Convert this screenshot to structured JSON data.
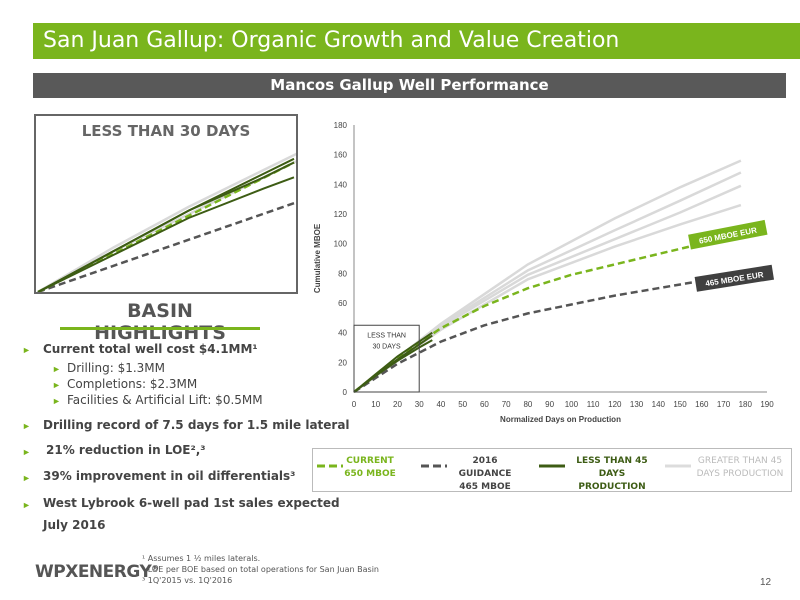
{
  "header": {
    "title": "San Juan Gallup: Organic Growth and Value Creation",
    "subtitle": "Mancos Gallup Well Performance"
  },
  "inset": {
    "title": "LESS THAN 30 DAYS"
  },
  "highlights": {
    "title": "BASIN HIGHLIGHTS",
    "items": [
      "Current total well cost $4.1MM¹",
      "Drilling: $1.3MM",
      "Completions: $2.3MM",
      "Facilities & Artificial Lift: $0.5MM",
      "Drilling record of 7.5 days for 1.5 mile lateral",
      "21% reduction in LOE²,³",
      "39% improvement in oil differentials³",
      "West Lybrook 6-well pad 1st sales expected",
      "July 2016"
    ]
  },
  "chart_data": {
    "type": "line",
    "xlabel": "Normalized Days on Production",
    "ylabel": "Cumulative MBOE",
    "xlim": [
      0,
      190
    ],
    "ylim": [
      0,
      180
    ],
    "xticks": [
      "0",
      "10",
      "20",
      "30",
      "40",
      "50",
      "60",
      "70",
      "80",
      "90",
      "100",
      "110",
      "120",
      "130",
      "140",
      "150",
      "160",
      "170",
      "180",
      "190"
    ],
    "yticks": [
      "0",
      "20",
      "40",
      "60",
      "80",
      "100",
      "120",
      "140",
      "160",
      "180"
    ],
    "grid": false,
    "annotation_box_label": [
      "LESS THAN",
      "30 DAYS"
    ],
    "eur_labels": [
      "650 MBOE EUR",
      "465 MBOE EUR"
    ],
    "colors": {
      "current": "#7ab51d",
      "guidance": "#555555",
      "short": "#3d5c14",
      "long": "#d9d9d9",
      "eur650_bg": "#7ab51d",
      "eur465_bg": "#404040"
    },
    "series": [
      {
        "name": "CURRENT 650 MBOE",
        "style": "dashed",
        "x": [
          0,
          20,
          40,
          60,
          80,
          100,
          120,
          140,
          160,
          175
        ],
        "y": [
          0,
          23,
          43,
          58,
          70,
          79,
          86,
          93,
          100,
          104
        ]
      },
      {
        "name": "2016 GUIDANCE 465 MBOE",
        "style": "dashed",
        "x": [
          0,
          20,
          40,
          60,
          80,
          100,
          120,
          140,
          160,
          175
        ],
        "y": [
          0,
          19,
          34,
          45,
          53,
          59,
          65,
          70,
          75,
          78
        ]
      },
      {
        "name": "LESS THAN 45 DAYS PRODUCTION",
        "style": "solid",
        "x": [
          [
            0,
            10,
            20,
            30,
            36
          ],
          [
            0,
            10,
            20,
            30,
            36
          ],
          [
            0,
            10,
            20,
            30,
            36
          ]
        ],
        "y": [
          [
            0,
            12,
            24,
            34,
            40
          ],
          [
            0,
            11,
            21,
            30,
            35
          ],
          [
            0,
            11,
            22,
            32,
            38
          ]
        ]
      },
      {
        "name": "GREATER THAN 45 DAYS PRODUCTION",
        "style": "solid",
        "x": [
          [
            0,
            40,
            80,
            120,
            150,
            178
          ],
          [
            0,
            40,
            80,
            120,
            150,
            178
          ],
          [
            0,
            40,
            80,
            120,
            150,
            178
          ],
          [
            0,
            40,
            80,
            120,
            150,
            178
          ]
        ],
        "y": [
          [
            0,
            46,
            86,
            117,
            138,
            156
          ],
          [
            0,
            44,
            79,
            103,
            121,
            139
          ],
          [
            0,
            42,
            76,
            98,
            113,
            126
          ],
          [
            0,
            45,
            82,
            109,
            129,
            148
          ]
        ]
      }
    ]
  },
  "legend": {
    "items": [
      {
        "line1": "CURRENT",
        "line2": "650 MBOE"
      },
      {
        "line1": "2016 GUIDANCE",
        "line2": "465 MBOE"
      },
      {
        "line1": "LESS THAN 45 DAYS",
        "line2": "PRODUCTION"
      },
      {
        "line1": "GREATER THAN 45",
        "line2": "DAYS PRODUCTION"
      }
    ]
  },
  "footnotes": [
    "¹ Assumes 1 ½ miles laterals.",
    "² LOE per BOE based on total operations for San Juan Basin",
    "³ 1Q'2015 vs. 1Q'2016"
  ],
  "logo": {
    "text": "WPXENERGY",
    "mark": "®"
  },
  "page_number": "12"
}
